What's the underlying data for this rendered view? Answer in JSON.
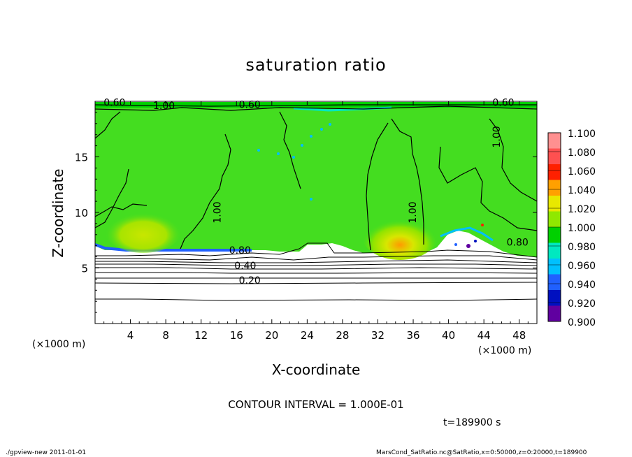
{
  "chart_data": {
    "type": "heatmap",
    "title": "saturation ratio",
    "xlabel": "X-coordinate",
    "ylabel": "Z-coordinate",
    "x_unit": "(×1000 m)",
    "x_unit_right": "(×1000 m)",
    "xticks": [
      4,
      8,
      12,
      16,
      20,
      24,
      28,
      32,
      36,
      40,
      44,
      48
    ],
    "yticks": [
      5,
      10,
      15
    ],
    "xlim": [
      0,
      50
    ],
    "ylim": [
      0,
      20
    ],
    "contour_interval_label": "CONTOUR INTERVAL = 1.000E-01",
    "time_label": "t=189900 s",
    "contour_labels": [
      {
        "text": "0.60",
        "x": 2.2,
        "z": 19.6
      },
      {
        "text": "1.00",
        "x": 7.8,
        "z": 19.3
      },
      {
        "text": "0.60",
        "x": 17.5,
        "z": 19.4
      },
      {
        "text": "0.60",
        "x": 46.2,
        "z": 19.6
      },
      {
        "text": "1.00",
        "x": 45.8,
        "z": 16.8
      },
      {
        "text": "1.00",
        "x": 14.2,
        "z": 10.0
      },
      {
        "text": "1.00",
        "x": 36.3,
        "z": 10.0
      },
      {
        "text": "0.80",
        "x": 16.4,
        "z": 6.3
      },
      {
        "text": "0.40",
        "x": 17.0,
        "z": 4.9
      },
      {
        "text": "0.20",
        "x": 17.5,
        "z": 3.6
      },
      {
        "text": "0.80",
        "x": 47.8,
        "z": 7.0
      }
    ],
    "colorbar": {
      "levels": [
        "1.100",
        "1.080",
        "1.060",
        "1.040",
        "1.020",
        "1.000",
        "0.980",
        "0.960",
        "0.940",
        "0.920",
        "0.900"
      ],
      "colors": [
        "#ff9090",
        "#ff5050",
        "#ff2000",
        "#ffa000",
        "#e8e800",
        "#90e800",
        "#00d000",
        "#00e8c0",
        "#00c0ff",
        "#2060ff",
        "#0010c0",
        "#6000a0"
      ]
    }
  },
  "footer": {
    "left": "./gpview-new  2011-01-01",
    "right": "MarsCond_SatRatio.nc@SatRatio,x=0:50000,z=0:20000,t=189900"
  }
}
